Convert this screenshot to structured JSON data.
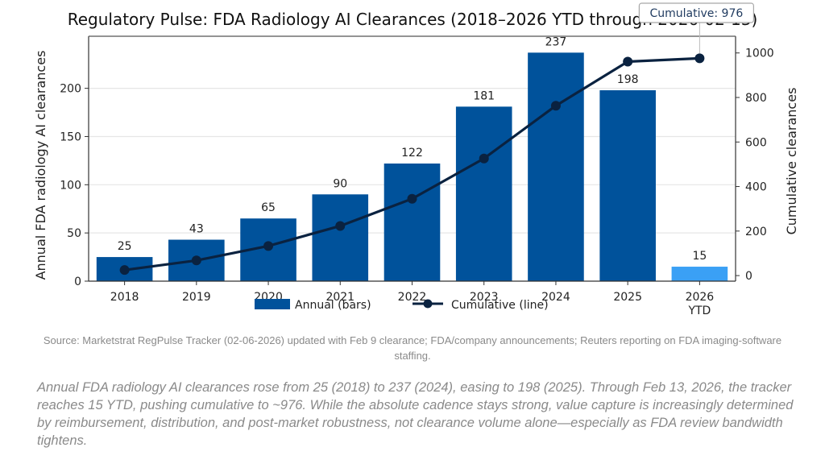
{
  "chart_data": {
    "type": "bar",
    "title": "Regulatory Pulse: FDA Radiology AI Clearances (2018–2026 YTD through 2026-02-13)",
    "categories": [
      "2018",
      "2019",
      "2020",
      "2021",
      "2022",
      "2023",
      "2024",
      "2025",
      "2026\nYTD"
    ],
    "category_lines": [
      [
        "2018"
      ],
      [
        "2019"
      ],
      [
        "2020"
      ],
      [
        "2021"
      ],
      [
        "2022"
      ],
      [
        "2023"
      ],
      [
        "2024"
      ],
      [
        "2025"
      ],
      [
        "2026",
        "YTD"
      ]
    ],
    "series": [
      {
        "name": "Annual (bars)",
        "type": "bar",
        "axis": "left",
        "values": [
          25,
          43,
          65,
          90,
          122,
          181,
          237,
          198,
          15
        ],
        "colors": [
          "#00529b",
          "#00529b",
          "#00529b",
          "#00529b",
          "#00529b",
          "#00529b",
          "#00529b",
          "#00529b",
          "#3aa0f5"
        ]
      },
      {
        "name": "Cumulative (line)",
        "type": "line",
        "axis": "right",
        "values": [
          25,
          68,
          133,
          223,
          345,
          526,
          763,
          961,
          976
        ],
        "color": "#0a2240"
      }
    ],
    "xlabel": "",
    "ylabel": "Annual FDA radiology AI clearances",
    "y2label": "Cumulative clearances",
    "ylim": [
      0,
      254
    ],
    "y2lim": [
      -25,
      1075
    ],
    "yticks": [
      0,
      50,
      100,
      150,
      200
    ],
    "y2ticks": [
      0,
      200,
      400,
      600,
      800,
      1000
    ],
    "grid": true,
    "legend": {
      "placement": "bottom-center",
      "entries": [
        "Annual (bars)",
        "Cumulative (line)"
      ]
    },
    "annotation": {
      "text": "Cumulative: 976",
      "target_category": "2026\nYTD",
      "target_value": 976
    }
  },
  "footer": {
    "source": "Source: Marketstrat RegPulse Tracker (02-06-2026) updated with Feb 9 clearance; FDA/company announcements; Reuters reporting on FDA imaging-software staffing.",
    "narrative": "Annual FDA radiology AI clearances rose from 25 (2018) to 237 (2024), easing to 198 (2025). Through Feb 13, 2026, the tracker reaches 15 YTD, pushing cumulative to ~976. While the absolute cadence stays strong, value capture is increasingly determined by reimbursement, distribution, and post-market robustness, not clearance volume alone—especially as FDA review bandwidth tightens."
  }
}
